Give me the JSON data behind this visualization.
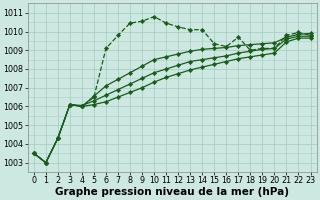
{
  "xlabel": "Graphe pression niveau de la mer (hPa)",
  "bg_color": "#cce8e0",
  "grid_color": "#aacfc8",
  "line_color": "#1a5c1a",
  "xlim": [
    -0.5,
    23.5
  ],
  "ylim": [
    1002.5,
    1011.5
  ],
  "yticks": [
    1003,
    1004,
    1005,
    1006,
    1007,
    1008,
    1009,
    1010,
    1011
  ],
  "yticks_minor": [
    1003.5,
    1004.5,
    1005.5,
    1006.5,
    1007.5,
    1008.5,
    1009.5,
    1010.5
  ],
  "xticks": [
    0,
    1,
    2,
    3,
    4,
    5,
    6,
    7,
    8,
    9,
    10,
    11,
    12,
    13,
    14,
    15,
    16,
    17,
    18,
    19,
    20,
    21,
    22,
    23
  ],
  "series": [
    {
      "x": [
        0,
        1,
        2,
        3,
        4,
        5,
        6,
        7,
        8,
        9,
        10,
        11,
        12,
        13,
        14,
        15,
        16,
        17,
        18,
        19,
        20,
        21,
        22,
        23
      ],
      "y": [
        1003.5,
        1003.0,
        1004.3,
        1006.1,
        1006.0,
        1006.5,
        1009.1,
        1009.8,
        1010.45,
        1010.55,
        1010.8,
        1010.45,
        1010.25,
        1010.1,
        1010.1,
        1009.35,
        1009.2,
        1009.7,
        1009.0,
        1009.1,
        1009.1,
        1009.8,
        1009.95,
        1009.8
      ],
      "marker": "D",
      "markersize": 2.2,
      "linewidth": 0.9,
      "linestyle": "--"
    },
    {
      "x": [
        0,
        1,
        2,
        3,
        4,
        5,
        6,
        7,
        8,
        9,
        10,
        11,
        12,
        13,
        14,
        15,
        16,
        17,
        18,
        19,
        20,
        21,
        22,
        23
      ],
      "y": [
        1003.5,
        1003.0,
        1004.3,
        1006.1,
        1006.0,
        1006.55,
        1007.1,
        1007.45,
        1007.8,
        1008.15,
        1008.5,
        1008.65,
        1008.8,
        1008.95,
        1009.05,
        1009.1,
        1009.15,
        1009.25,
        1009.3,
        1009.35,
        1009.4,
        1009.7,
        1009.85,
        1009.9
      ],
      "marker": "D",
      "markersize": 2.2,
      "linewidth": 0.9,
      "linestyle": "-"
    },
    {
      "x": [
        0,
        1,
        2,
        3,
        4,
        5,
        6,
        7,
        8,
        9,
        10,
        11,
        12,
        13,
        14,
        15,
        16,
        17,
        18,
        19,
        20,
        21,
        22,
        23
      ],
      "y": [
        1003.5,
        1003.0,
        1004.3,
        1006.1,
        1006.05,
        1006.3,
        1006.6,
        1006.9,
        1007.2,
        1007.5,
        1007.8,
        1008.0,
        1008.2,
        1008.4,
        1008.5,
        1008.6,
        1008.7,
        1008.85,
        1008.95,
        1009.05,
        1009.1,
        1009.6,
        1009.75,
        1009.75
      ],
      "marker": "D",
      "markersize": 2.2,
      "linewidth": 0.9,
      "linestyle": "-"
    },
    {
      "x": [
        0,
        1,
        2,
        3,
        4,
        5,
        6,
        7,
        8,
        9,
        10,
        11,
        12,
        13,
        14,
        15,
        16,
        17,
        18,
        19,
        20,
        21,
        22,
        23
      ],
      "y": [
        1003.5,
        1003.0,
        1004.3,
        1006.1,
        1006.0,
        1006.1,
        1006.25,
        1006.5,
        1006.75,
        1007.0,
        1007.3,
        1007.55,
        1007.75,
        1007.95,
        1008.1,
        1008.25,
        1008.4,
        1008.55,
        1008.65,
        1008.75,
        1008.85,
        1009.45,
        1009.65,
        1009.65
      ],
      "marker": "D",
      "markersize": 2.2,
      "linewidth": 0.9,
      "linestyle": "-"
    }
  ],
  "xlabel_fontsize": 7.5,
  "tick_fontsize": 5.8
}
